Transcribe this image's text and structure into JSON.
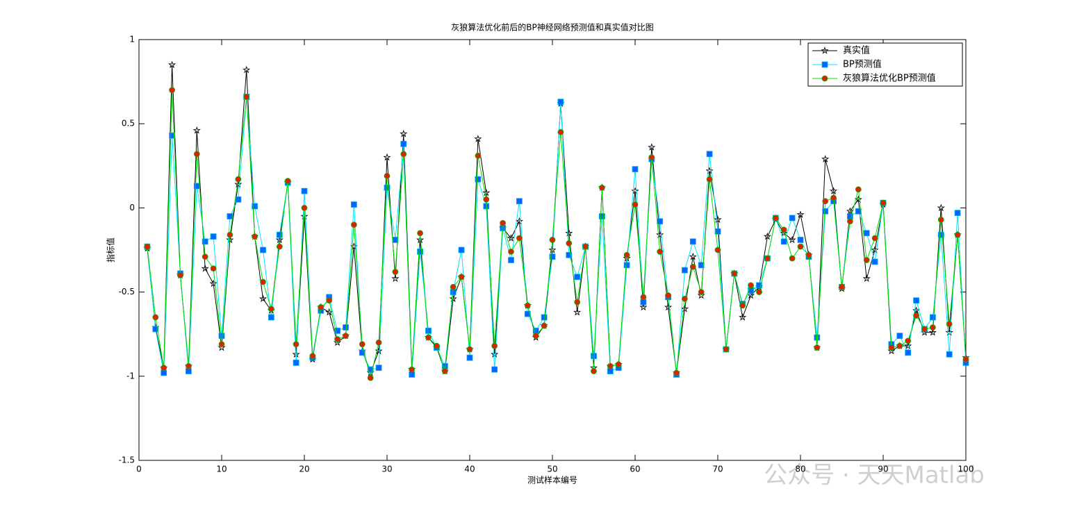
{
  "chart_data": {
    "type": "line",
    "title": "灰狼算法优化前后的BP神经网络预测值和真实值对比图",
    "xlabel": "测试样本编号",
    "ylabel": "指标值",
    "watermark": "公众号 · 天天Matlab",
    "xlim": [
      0,
      100
    ],
    "xticks": [
      0,
      10,
      20,
      30,
      40,
      50,
      60,
      70,
      80,
      90,
      100
    ],
    "ylim": [
      -1.5,
      1
    ],
    "yticks": [
      -1.5,
      -1,
      -0.5,
      0,
      0.5,
      1
    ],
    "legend": "upper right",
    "x": [
      1,
      2,
      3,
      4,
      5,
      6,
      7,
      8,
      9,
      10,
      11,
      12,
      13,
      14,
      15,
      16,
      17,
      18,
      19,
      20,
      21,
      22,
      23,
      24,
      25,
      26,
      27,
      28,
      29,
      30,
      31,
      32,
      33,
      34,
      35,
      36,
      37,
      38,
      39,
      40,
      41,
      42,
      43,
      44,
      45,
      46,
      47,
      48,
      49,
      50,
      51,
      52,
      53,
      54,
      55,
      56,
      57,
      58,
      59,
      60,
      61,
      62,
      63,
      64,
      65,
      66,
      67,
      68,
      69,
      70,
      71,
      72,
      73,
      74,
      75,
      76,
      77,
      78,
      79,
      80,
      81,
      82,
      83,
      84,
      85,
      86,
      87,
      88,
      89,
      90,
      91,
      92,
      93,
      94,
      95,
      96,
      97,
      98,
      99,
      100
    ],
    "series": [
      {
        "name": "真实值",
        "color": "#000000",
        "marker": "star",
        "marker_color": "#000000",
        "marker_edge": "#000000",
        "values": [
          -0.24,
          -0.71,
          -0.95,
          0.85,
          -0.4,
          -0.94,
          0.46,
          -0.36,
          -0.45,
          -0.83,
          -0.19,
          0.14,
          0.82,
          -0.17,
          -0.54,
          -0.61,
          -0.19,
          0.15,
          -0.87,
          -0.05,
          -0.9,
          -0.59,
          -0.62,
          -0.8,
          -0.76,
          -0.23,
          -0.85,
          -0.98,
          -0.85,
          0.3,
          -0.42,
          0.44,
          -0.96,
          -0.19,
          -0.77,
          -0.83,
          -0.97,
          -0.54,
          -0.41,
          -0.84,
          0.41,
          0.09,
          -0.87,
          -0.12,
          -0.18,
          -0.08,
          -0.58,
          -0.77,
          -0.7,
          -0.25,
          0.62,
          -0.15,
          -0.62,
          -0.23,
          -0.95,
          0.12,
          -0.94,
          -0.93,
          -0.3,
          0.1,
          -0.59,
          0.36,
          -0.16,
          -0.59,
          -0.98,
          -0.6,
          -0.29,
          -0.52,
          0.22,
          -0.07,
          -0.84,
          -0.39,
          -0.65,
          -0.52,
          -0.47,
          -0.17,
          -0.07,
          -0.15,
          -0.19,
          -0.04,
          -0.28,
          -0.83,
          0.29,
          0.1,
          -0.48,
          -0.02,
          0.05,
          -0.42,
          -0.25,
          0.02,
          -0.85,
          -0.82,
          -0.82,
          -0.61,
          -0.74,
          -0.74,
          0.0,
          -0.74,
          -0.16,
          -0.89
        ]
      },
      {
        "name": "BP预测值",
        "color": "#00e5ff",
        "marker": "square",
        "marker_color": "#0066ff",
        "marker_edge": "#00b0ff",
        "values": [
          -0.23,
          -0.72,
          -0.98,
          0.43,
          -0.39,
          -0.97,
          0.13,
          -0.2,
          -0.17,
          -0.76,
          -0.05,
          0.05,
          0.66,
          0.01,
          -0.25,
          -0.65,
          -0.16,
          0.15,
          -0.92,
          0.1,
          -0.89,
          -0.61,
          -0.53,
          -0.73,
          -0.71,
          0.02,
          -0.86,
          -0.96,
          -0.95,
          0.12,
          -0.19,
          0.38,
          -0.99,
          -0.26,
          -0.73,
          -0.83,
          -0.94,
          -0.5,
          -0.25,
          -0.89,
          0.17,
          0.01,
          -0.96,
          -0.12,
          -0.31,
          0.04,
          -0.63,
          -0.73,
          -0.65,
          -0.29,
          0.63,
          -0.28,
          -0.41,
          -0.23,
          -0.88,
          -0.05,
          -0.97,
          -0.95,
          -0.34,
          0.23,
          -0.56,
          0.29,
          -0.08,
          -0.53,
          -0.99,
          -0.37,
          -0.2,
          -0.34,
          0.32,
          -0.14,
          -0.84,
          -0.39,
          -0.57,
          -0.49,
          -0.46,
          -0.3,
          -0.06,
          -0.2,
          -0.06,
          -0.19,
          -0.29,
          -0.77,
          -0.02,
          0.04,
          -0.47,
          -0.05,
          -0.02,
          -0.15,
          -0.32,
          0.03,
          -0.81,
          -0.76,
          -0.86,
          -0.55,
          -0.72,
          -0.65,
          -0.16,
          -0.87,
          -0.03,
          -0.92
        ]
      },
      {
        "name": "灰狼算法优化BP预测值",
        "color": "#00dd00",
        "marker": "circle",
        "marker_color": "#dd2200",
        "marker_edge": "#00bb00",
        "values": [
          -0.23,
          -0.65,
          -0.95,
          0.7,
          -0.4,
          -0.94,
          0.32,
          -0.29,
          -0.36,
          -0.81,
          -0.16,
          0.17,
          0.66,
          -0.17,
          -0.44,
          -0.6,
          -0.23,
          0.16,
          -0.81,
          0.0,
          -0.88,
          -0.59,
          -0.55,
          -0.78,
          -0.76,
          -0.1,
          -0.81,
          -1.01,
          -0.8,
          0.19,
          -0.38,
          0.32,
          -0.96,
          -0.15,
          -0.77,
          -0.82,
          -0.97,
          -0.47,
          -0.41,
          -0.84,
          0.31,
          0.05,
          -0.82,
          -0.09,
          -0.26,
          -0.18,
          -0.58,
          -0.76,
          -0.7,
          -0.19,
          0.45,
          -0.21,
          -0.56,
          -0.23,
          -0.97,
          0.12,
          -0.94,
          -0.93,
          -0.28,
          0.02,
          -0.53,
          0.3,
          -0.26,
          -0.52,
          -0.98,
          -0.54,
          -0.35,
          -0.5,
          0.17,
          -0.25,
          -0.84,
          -0.39,
          -0.58,
          -0.46,
          -0.5,
          -0.3,
          -0.06,
          -0.13,
          -0.3,
          -0.23,
          -0.28,
          -0.83,
          0.04,
          0.06,
          -0.47,
          -0.08,
          0.11,
          -0.31,
          -0.18,
          0.03,
          -0.83,
          -0.82,
          -0.79,
          -0.64,
          -0.72,
          -0.71,
          -0.07,
          -0.69,
          -0.16,
          -0.9
        ]
      }
    ]
  }
}
